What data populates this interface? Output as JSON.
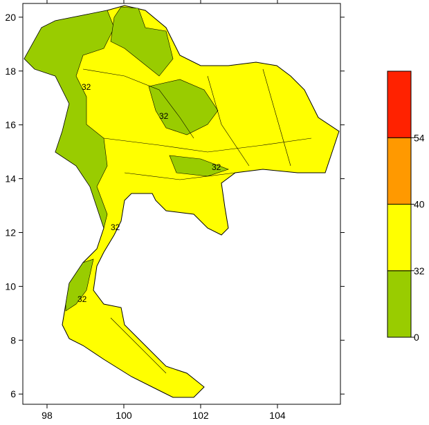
{
  "chart_data": {
    "type": "map",
    "xlim": [
      97.37,
      105.64
    ],
    "xticks": [
      98,
      100,
      102,
      104
    ],
    "ylim": [
      5.62,
      20.51
    ],
    "yticks": [
      6,
      8,
      10,
      12,
      14,
      16,
      18,
      20
    ],
    "colorbar": {
      "levels": [
        0,
        32,
        40,
        54
      ],
      "colors": [
        "#99cc00",
        "#ffff00",
        "#ff9900",
        "#ff2200"
      ]
    },
    "contour_labels": [
      "32",
      "32",
      "32",
      "32",
      "32"
    ]
  }
}
